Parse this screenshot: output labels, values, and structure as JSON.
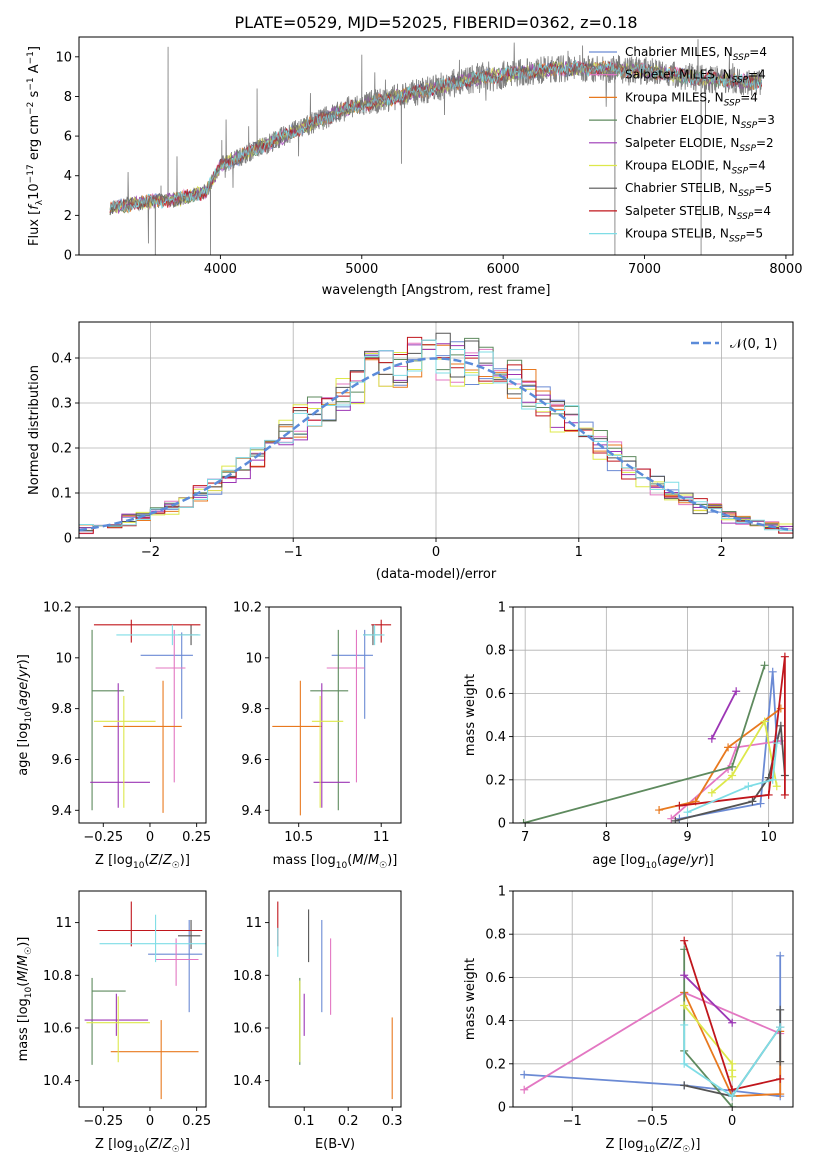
{
  "models": [
    {
      "name": "Chabrier MILES, N_SSP=4",
      "color": "#6b8ad4"
    },
    {
      "name": "Salpeter MILES, N_SSP=4",
      "color": "#e377c2"
    },
    {
      "name": "Kroupa MILES, N_SSP=4",
      "color": "#e8791f"
    },
    {
      "name": "Chabrier ELODIE, N_SSP=3",
      "color": "#5e8a5e"
    },
    {
      "name": "Salpeter ELODIE, N_SSP=2",
      "color": "#9c36b5"
    },
    {
      "name": "Kroupa ELODIE, N_SSP=4",
      "color": "#dde84a"
    },
    {
      "name": "Chabrier STELIB, N_SSP=5",
      "color": "#555555"
    },
    {
      "name": "Salpeter STELIB, N_SSP=4",
      "color": "#c0161c"
    },
    {
      "name": "Kroupa STELIB, N_SSP=5",
      "color": "#7fdde6"
    }
  ],
  "chart_data": [
    {
      "id": "spectrum",
      "type": "line",
      "title": "PLATE=0529, MJD=52025, FIBERID=0362, z=0.18",
      "xlabel": "wavelength [Angstrom, rest frame]",
      "ylabel": "Flux [f_λ 10^-17 erg cm^-2 s^-1 A^-1]",
      "xlim": [
        3000,
        8050
      ],
      "ylim": [
        0,
        11
      ],
      "xticks": [
        4000,
        5000,
        6000,
        7000,
        8000
      ],
      "yticks": [
        0,
        2,
        4,
        6,
        8,
        10
      ],
      "data_color": "#808080",
      "wavelength_range": [
        3220,
        7830
      ],
      "continuum": [
        [
          3220,
          2.4
        ],
        [
          3500,
          2.7
        ],
        [
          3700,
          2.8
        ],
        [
          3900,
          3.2
        ],
        [
          4000,
          4.5
        ],
        [
          4300,
          5.5
        ],
        [
          4600,
          6.5
        ],
        [
          4900,
          7.4
        ],
        [
          5200,
          7.9
        ],
        [
          5500,
          8.4
        ],
        [
          5800,
          8.9
        ],
        [
          6100,
          9.2
        ],
        [
          6400,
          9.4
        ],
        [
          6700,
          9.4
        ],
        [
          7000,
          9.3
        ],
        [
          7400,
          8.9
        ],
        [
          7830,
          8.7
        ]
      ],
      "legend_position": "upper-right"
    },
    {
      "id": "residuals",
      "type": "histogram",
      "xlabel": "(data-model)/error",
      "ylabel": "Normed distribution",
      "xlim": [
        -2.5,
        2.5
      ],
      "ylim": [
        0,
        0.48
      ],
      "xticks": [
        -2,
        -1,
        0,
        1,
        2
      ],
      "yticks": [
        0,
        0.1,
        0.2,
        0.3,
        0.4
      ],
      "grid": true,
      "bin_width": 0.1,
      "normal_label": "𝒩(0, 1)",
      "normal_color": "#5b8bd9",
      "legend_position": "upper-right"
    },
    {
      "id": "z-age",
      "type": "scatter",
      "xlabel": "Z [log10(Z/Z☉)]",
      "ylabel": "age [log10(age/yr)]",
      "xlim": [
        -0.38,
        0.3
      ],
      "ylim": [
        9.35,
        10.2
      ],
      "xticks": [
        -0.25,
        0.0,
        0.25
      ],
      "yticks": [
        9.4,
        9.6,
        9.8,
        10.0,
        10.2
      ],
      "points": [
        {
          "m": 0,
          "x": 0.17,
          "y": 10.01,
          "xerr": [
            0.22,
            0.06
          ],
          "yerr": [
            0.25,
            0.09
          ]
        },
        {
          "m": 1,
          "x": 0.13,
          "y": 9.96,
          "xerr": [
            0.1,
            0.06
          ],
          "yerr": [
            0.45,
            0.15
          ]
        },
        {
          "m": 2,
          "x": 0.07,
          "y": 9.73,
          "xerr": [
            0.32,
            0.1
          ],
          "yerr": [
            0.34,
            0.18
          ]
        },
        {
          "m": 3,
          "x": -0.31,
          "y": 9.87,
          "xerr": [
            0.0,
            0.17
          ],
          "yerr": [
            0.47,
            0.24
          ]
        },
        {
          "m": 4,
          "x": -0.17,
          "y": 9.51,
          "xerr": [
            0.15,
            0.17
          ],
          "yerr": [
            0.1,
            0.39
          ]
        },
        {
          "m": 5,
          "x": -0.14,
          "y": 9.75,
          "xerr": [
            0.16,
            0.17
          ],
          "yerr": [
            0.34,
            0.1
          ]
        },
        {
          "m": 6,
          "x": 0.22,
          "y": 10.09,
          "xerr": [
            0.07,
            0.04
          ],
          "yerr": [
            0.04,
            0.04
          ]
        },
        {
          "m": 7,
          "x": -0.1,
          "y": 10.13,
          "xerr": [
            0.2,
            0.37
          ],
          "yerr": [
            0.07,
            0.02
          ]
        },
        {
          "m": 8,
          "x": 0.12,
          "y": 10.09,
          "xerr": [
            0.3,
            0.15
          ],
          "yerr": [
            0.04,
            0.04
          ]
        }
      ]
    },
    {
      "id": "mass-age",
      "type": "scatter",
      "xlabel": "mass [log10(M/M☉)]",
      "ylabel": "",
      "xlim": [
        10.32,
        11.12
      ],
      "ylim": [
        9.35,
        10.2
      ],
      "xticks": [
        10.5,
        11.0
      ],
      "yticks": [
        9.4,
        9.6,
        9.8,
        10.0,
        10.2
      ],
      "points": [
        {
          "m": 0,
          "x": 10.9,
          "y": 10.01,
          "xerr": [
            0.2,
            0.05
          ],
          "yerr": [
            0.25,
            0.1
          ]
        },
        {
          "m": 1,
          "x": 10.85,
          "y": 9.96,
          "xerr": [
            0.18,
            0.05
          ],
          "yerr": [
            0.45,
            0.15
          ]
        },
        {
          "m": 2,
          "x": 10.51,
          "y": 9.73,
          "xerr": [
            0.17,
            0.13
          ],
          "yerr": [
            0.35,
            0.18
          ]
        },
        {
          "m": 3,
          "x": 10.74,
          "y": 9.87,
          "xerr": [
            0.17,
            0.06
          ],
          "yerr": [
            0.47,
            0.24
          ]
        },
        {
          "m": 4,
          "x": 10.64,
          "y": 9.51,
          "xerr": [
            0.05,
            0.17
          ],
          "yerr": [
            0.1,
            0.39
          ]
        },
        {
          "m": 5,
          "x": 10.63,
          "y": 9.75,
          "xerr": [
            0.05,
            0.14
          ],
          "yerr": [
            0.34,
            0.1
          ]
        },
        {
          "m": 6,
          "x": 10.95,
          "y": 10.09,
          "xerr": [
            0.06,
            0.05
          ],
          "yerr": [
            0.04,
            0.04
          ]
        },
        {
          "m": 7,
          "x": 11.0,
          "y": 10.13,
          "xerr": [
            0.06,
            0.06
          ],
          "yerr": [
            0.07,
            0.02
          ]
        },
        {
          "m": 8,
          "x": 10.96,
          "y": 10.09,
          "xerr": [
            0.07,
            0.06
          ],
          "yerr": [
            0.04,
            0.04
          ]
        }
      ]
    },
    {
      "id": "age-weight",
      "type": "line",
      "xlabel": "age [log10(age/yr)]",
      "ylabel": "mass weight",
      "xlim": [
        6.85,
        10.3
      ],
      "ylim": [
        0,
        1.0
      ],
      "xticks": [
        7,
        8,
        9,
        10
      ],
      "yticks": [
        0.0,
        0.2,
        0.4,
        0.6,
        0.8,
        1.0
      ],
      "grid": true,
      "series": [
        {
          "m": 0,
          "points": [
            [
              8.9,
              0.02
            ],
            [
              9.9,
              0.09
            ],
            [
              10.05,
              0.7
            ],
            [
              10.1,
              0.38
            ]
          ]
        },
        {
          "m": 1,
          "points": [
            [
              8.8,
              0.02
            ],
            [
              9.5,
              0.25
            ],
            [
              9.6,
              0.35
            ],
            [
              10.15,
              0.38
            ]
          ]
        },
        {
          "m": 2,
          "points": [
            [
              8.65,
              0.06
            ],
            [
              9.1,
              0.1
            ],
            [
              9.5,
              0.35
            ],
            [
              10.15,
              0.53
            ]
          ]
        },
        {
          "m": 3,
          "points": [
            [
              6.98,
              0.0
            ],
            [
              9.55,
              0.26
            ],
            [
              9.95,
              0.73
            ]
          ]
        },
        {
          "m": 4,
          "points": [
            [
              9.3,
              0.39
            ],
            [
              9.6,
              0.61
            ]
          ]
        },
        {
          "m": 5,
          "points": [
            [
              9.3,
              0.14
            ],
            [
              9.55,
              0.22
            ],
            [
              9.95,
              0.47
            ],
            [
              10.1,
              0.17
            ]
          ]
        },
        {
          "m": 6,
          "points": [
            [
              8.85,
              0.01
            ],
            [
              9.8,
              0.1
            ],
            [
              10.0,
              0.21
            ],
            [
              10.15,
              0.45
            ],
            [
              10.2,
              0.22
            ]
          ]
        },
        {
          "m": 7,
          "points": [
            [
              8.9,
              0.08
            ],
            [
              10.0,
              0.13
            ],
            [
              10.2,
              0.77
            ],
            [
              10.2,
              0.13
            ]
          ]
        },
        {
          "m": 8,
          "points": [
            [
              9.0,
              0.05
            ],
            [
              9.75,
              0.17
            ],
            [
              10.05,
              0.2
            ],
            [
              10.1,
              0.37
            ]
          ]
        }
      ]
    },
    {
      "id": "z-mass",
      "type": "scatter",
      "xlabel": "Z [log10(Z/Z☉)]",
      "ylabel": "mass [log10(M/M☉)]",
      "xlim": [
        -0.38,
        0.3
      ],
      "ylim": [
        10.3,
        11.12
      ],
      "xticks": [
        -0.25,
        0.0,
        0.25
      ],
      "yticks": [
        10.4,
        10.6,
        10.8,
        11.0
      ],
      "points": [
        {
          "m": 0,
          "x": 0.21,
          "y": 10.88,
          "xerr": [
            0.22,
            0.07
          ],
          "yerr": [
            0.22,
            0.13
          ]
        },
        {
          "m": 1,
          "x": 0.14,
          "y": 10.86,
          "xerr": [
            0.11,
            0.12
          ],
          "yerr": [
            0.1,
            0.08
          ]
        },
        {
          "m": 2,
          "x": 0.06,
          "y": 10.51,
          "xerr": [
            0.27,
            0.2
          ],
          "yerr": [
            0.18,
            0.12
          ]
        },
        {
          "m": 3,
          "x": -0.31,
          "y": 10.74,
          "xerr": [
            0.0,
            0.18
          ],
          "yerr": [
            0.28,
            0.05
          ]
        },
        {
          "m": 4,
          "x": -0.18,
          "y": 10.63,
          "xerr": [
            0.17,
            0.17
          ],
          "yerr": [
            0.06,
            0.1
          ]
        },
        {
          "m": 5,
          "x": -0.17,
          "y": 10.62,
          "xerr": [
            0.17,
            0.17
          ],
          "yerr": [
            0.15,
            0.1
          ]
        },
        {
          "m": 6,
          "x": 0.22,
          "y": 10.95,
          "xerr": [
            0.07,
            0.05
          ],
          "yerr": [
            0.05,
            0.06
          ]
        },
        {
          "m": 7,
          "x": -0.1,
          "y": 10.97,
          "xerr": [
            0.18,
            0.38
          ],
          "yerr": [
            0.06,
            0.11
          ]
        },
        {
          "m": 8,
          "x": 0.03,
          "y": 10.92,
          "xerr": [
            0.3,
            0.27
          ],
          "yerr": [
            0.07,
            0.11
          ]
        }
      ]
    },
    {
      "id": "ebv-mass",
      "type": "errorbar",
      "xlabel": "E(B-V)",
      "ylabel": "",
      "xlim": [
        0.02,
        0.32
      ],
      "ylim": [
        10.3,
        11.12
      ],
      "xticks": [
        0.1,
        0.2,
        0.3
      ],
      "yticks": [
        10.4,
        10.6,
        10.8,
        11.0
      ],
      "points": [
        {
          "m": 0,
          "x": 0.14,
          "y": 10.88,
          "yerr": [
            0.22,
            0.13
          ]
        },
        {
          "m": 1,
          "x": 0.16,
          "y": 10.86,
          "yerr": [
            0.21,
            0.08
          ]
        },
        {
          "m": 2,
          "x": 0.3,
          "y": 10.45,
          "yerr": [
            0.12,
            0.19
          ]
        },
        {
          "m": 3,
          "x": 0.09,
          "y": 10.74,
          "yerr": [
            0.28,
            0.05
          ]
        },
        {
          "m": 4,
          "x": 0.1,
          "y": 10.63,
          "yerr": [
            0.06,
            0.1
          ]
        },
        {
          "m": 5,
          "x": 0.09,
          "y": 10.62,
          "yerr": [
            0.15,
            0.16
          ]
        },
        {
          "m": 6,
          "x": 0.11,
          "y": 10.95,
          "yerr": [
            0.1,
            0.1
          ]
        },
        {
          "m": 7,
          "x": 0.04,
          "y": 10.97,
          "yerr": [
            0.06,
            0.11
          ]
        },
        {
          "m": 8,
          "x": 0.04,
          "y": 10.92,
          "yerr": [
            0.05,
            0.06
          ]
        }
      ]
    },
    {
      "id": "z-weight",
      "type": "line",
      "xlabel": "Z [log10(Z/Z☉)]",
      "ylabel": "mass weight",
      "xlim": [
        -1.37,
        0.38
      ],
      "ylim": [
        0,
        1.0
      ],
      "xticks": [
        -1.0,
        -0.5,
        0.0
      ],
      "yticks": [
        0.0,
        0.2,
        0.4,
        0.6,
        0.8,
        1.0
      ],
      "grid": true,
      "series": [
        {
          "m": 0,
          "points": [
            [
              -1.3,
              0.15
            ],
            [
              -0.3,
              0.1
            ],
            [
              0.3,
              0.05
            ],
            [
              0.3,
              0.7
            ]
          ]
        },
        {
          "m": 1,
          "points": [
            [
              -1.3,
              0.08
            ],
            [
              -0.3,
              0.53
            ],
            [
              0.3,
              0.34
            ]
          ]
        },
        {
          "m": 2,
          "points": [
            [
              -0.3,
              0.53
            ],
            [
              0.0,
              0.05
            ],
            [
              0.3,
              0.06
            ],
            [
              0.3,
              0.35
            ]
          ]
        },
        {
          "m": 3,
          "points": [
            [
              -0.3,
              0.73
            ],
            [
              -0.3,
              0.26
            ],
            [
              0.0,
              0.0
            ]
          ]
        },
        {
          "m": 4,
          "points": [
            [
              -0.3,
              0.61
            ],
            [
              0.0,
              0.39
            ]
          ]
        },
        {
          "m": 5,
          "points": [
            [
              -0.3,
              0.47
            ],
            [
              0.0,
              0.2
            ],
            [
              0.0,
              0.17
            ],
            [
              0.0,
              0.14
            ]
          ]
        },
        {
          "m": 6,
          "points": [
            [
              -0.3,
              0.1
            ],
            [
              0.0,
              0.05
            ],
            [
              0.3,
              0.37
            ],
            [
              0.3,
              0.45
            ],
            [
              0.3,
              0.21
            ]
          ]
        },
        {
          "m": 7,
          "points": [
            [
              -0.3,
              0.77
            ],
            [
              0.0,
              0.08
            ],
            [
              0.3,
              0.13
            ]
          ]
        },
        {
          "m": 8,
          "points": [
            [
              -0.3,
              0.38
            ],
            [
              -0.3,
              0.2
            ],
            [
              0.0,
              0.05
            ],
            [
              0.3,
              0.37
            ]
          ]
        }
      ]
    }
  ]
}
